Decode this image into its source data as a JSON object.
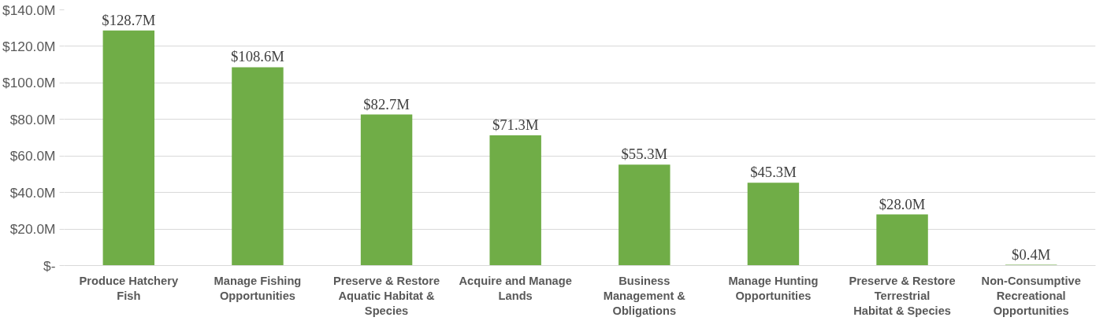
{
  "chart_data": {
    "type": "bar",
    "categories": [
      "Produce Hatchery Fish",
      "Manage Fishing Opportunities",
      "Preserve & Restore Aquatic Habitat & Species",
      "Acquire and Manage Lands",
      "Business Management & Obligations",
      "Manage Hunting Opportunities",
      "Preserve & Restore Terrestrial Habitat & Species",
      "Non-Consumptive Recreational Opportunities"
    ],
    "values": [
      128.7,
      108.6,
      82.7,
      71.3,
      55.3,
      45.3,
      28.0,
      0.4
    ],
    "value_labels": [
      "$128.7M",
      "$108.6M",
      "$82.7M",
      "$71.3M",
      "$55.3M",
      "$45.3M",
      "$28.0M",
      "$0.4M"
    ],
    "color": "#70ad47",
    "ylim": [
      0,
      140
    ],
    "yticks": [
      {
        "value": 0,
        "label": "$-"
      },
      {
        "value": 20,
        "label": "$20.0M"
      },
      {
        "value": 40,
        "label": "$40.0M"
      },
      {
        "value": 60,
        "label": "$60.0M"
      },
      {
        "value": 80,
        "label": "$80.0M"
      },
      {
        "value": 100,
        "label": "$100.0M"
      },
      {
        "value": 120,
        "label": "$120.0M"
      },
      {
        "value": 140,
        "label": "$140.0M"
      }
    ],
    "grid": "y"
  }
}
